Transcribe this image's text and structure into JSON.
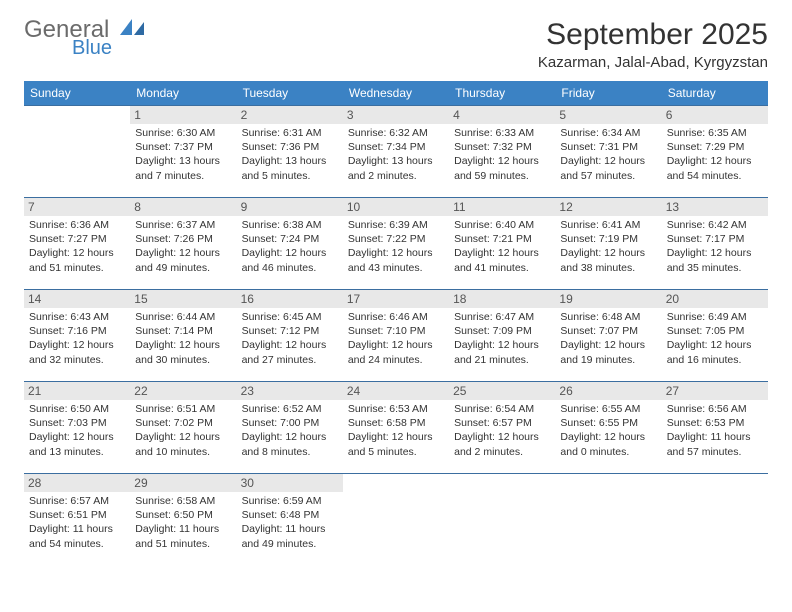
{
  "brand": {
    "line1": "General",
    "line2": "Blue"
  },
  "title": "September 2025",
  "subtitle": "Kazarman, Jalal-Abad, Kyrgyzstan",
  "colors": {
    "header_bg": "#3b82c4",
    "header_fg": "#ffffff",
    "daynum_bg": "#e8e8e8",
    "border": "#3b6ea0",
    "brand_gray": "#6b6b6b",
    "brand_blue": "#3b82c4"
  },
  "day_headers": [
    "Sunday",
    "Monday",
    "Tuesday",
    "Wednesday",
    "Thursday",
    "Friday",
    "Saturday"
  ],
  "weeks": [
    [
      null,
      {
        "n": "1",
        "sr": "Sunrise: 6:30 AM",
        "ss": "Sunset: 7:37 PM",
        "dl": "Daylight: 13 hours and 7 minutes."
      },
      {
        "n": "2",
        "sr": "Sunrise: 6:31 AM",
        "ss": "Sunset: 7:36 PM",
        "dl": "Daylight: 13 hours and 5 minutes."
      },
      {
        "n": "3",
        "sr": "Sunrise: 6:32 AM",
        "ss": "Sunset: 7:34 PM",
        "dl": "Daylight: 13 hours and 2 minutes."
      },
      {
        "n": "4",
        "sr": "Sunrise: 6:33 AM",
        "ss": "Sunset: 7:32 PM",
        "dl": "Daylight: 12 hours and 59 minutes."
      },
      {
        "n": "5",
        "sr": "Sunrise: 6:34 AM",
        "ss": "Sunset: 7:31 PM",
        "dl": "Daylight: 12 hours and 57 minutes."
      },
      {
        "n": "6",
        "sr": "Sunrise: 6:35 AM",
        "ss": "Sunset: 7:29 PM",
        "dl": "Daylight: 12 hours and 54 minutes."
      }
    ],
    [
      {
        "n": "7",
        "sr": "Sunrise: 6:36 AM",
        "ss": "Sunset: 7:27 PM",
        "dl": "Daylight: 12 hours and 51 minutes."
      },
      {
        "n": "8",
        "sr": "Sunrise: 6:37 AM",
        "ss": "Sunset: 7:26 PM",
        "dl": "Daylight: 12 hours and 49 minutes."
      },
      {
        "n": "9",
        "sr": "Sunrise: 6:38 AM",
        "ss": "Sunset: 7:24 PM",
        "dl": "Daylight: 12 hours and 46 minutes."
      },
      {
        "n": "10",
        "sr": "Sunrise: 6:39 AM",
        "ss": "Sunset: 7:22 PM",
        "dl": "Daylight: 12 hours and 43 minutes."
      },
      {
        "n": "11",
        "sr": "Sunrise: 6:40 AM",
        "ss": "Sunset: 7:21 PM",
        "dl": "Daylight: 12 hours and 41 minutes."
      },
      {
        "n": "12",
        "sr": "Sunrise: 6:41 AM",
        "ss": "Sunset: 7:19 PM",
        "dl": "Daylight: 12 hours and 38 minutes."
      },
      {
        "n": "13",
        "sr": "Sunrise: 6:42 AM",
        "ss": "Sunset: 7:17 PM",
        "dl": "Daylight: 12 hours and 35 minutes."
      }
    ],
    [
      {
        "n": "14",
        "sr": "Sunrise: 6:43 AM",
        "ss": "Sunset: 7:16 PM",
        "dl": "Daylight: 12 hours and 32 minutes."
      },
      {
        "n": "15",
        "sr": "Sunrise: 6:44 AM",
        "ss": "Sunset: 7:14 PM",
        "dl": "Daylight: 12 hours and 30 minutes."
      },
      {
        "n": "16",
        "sr": "Sunrise: 6:45 AM",
        "ss": "Sunset: 7:12 PM",
        "dl": "Daylight: 12 hours and 27 minutes."
      },
      {
        "n": "17",
        "sr": "Sunrise: 6:46 AM",
        "ss": "Sunset: 7:10 PM",
        "dl": "Daylight: 12 hours and 24 minutes."
      },
      {
        "n": "18",
        "sr": "Sunrise: 6:47 AM",
        "ss": "Sunset: 7:09 PM",
        "dl": "Daylight: 12 hours and 21 minutes."
      },
      {
        "n": "19",
        "sr": "Sunrise: 6:48 AM",
        "ss": "Sunset: 7:07 PM",
        "dl": "Daylight: 12 hours and 19 minutes."
      },
      {
        "n": "20",
        "sr": "Sunrise: 6:49 AM",
        "ss": "Sunset: 7:05 PM",
        "dl": "Daylight: 12 hours and 16 minutes."
      }
    ],
    [
      {
        "n": "21",
        "sr": "Sunrise: 6:50 AM",
        "ss": "Sunset: 7:03 PM",
        "dl": "Daylight: 12 hours and 13 minutes."
      },
      {
        "n": "22",
        "sr": "Sunrise: 6:51 AM",
        "ss": "Sunset: 7:02 PM",
        "dl": "Daylight: 12 hours and 10 minutes."
      },
      {
        "n": "23",
        "sr": "Sunrise: 6:52 AM",
        "ss": "Sunset: 7:00 PM",
        "dl": "Daylight: 12 hours and 8 minutes."
      },
      {
        "n": "24",
        "sr": "Sunrise: 6:53 AM",
        "ss": "Sunset: 6:58 PM",
        "dl": "Daylight: 12 hours and 5 minutes."
      },
      {
        "n": "25",
        "sr": "Sunrise: 6:54 AM",
        "ss": "Sunset: 6:57 PM",
        "dl": "Daylight: 12 hours and 2 minutes."
      },
      {
        "n": "26",
        "sr": "Sunrise: 6:55 AM",
        "ss": "Sunset: 6:55 PM",
        "dl": "Daylight: 12 hours and 0 minutes."
      },
      {
        "n": "27",
        "sr": "Sunrise: 6:56 AM",
        "ss": "Sunset: 6:53 PM",
        "dl": "Daylight: 11 hours and 57 minutes."
      }
    ],
    [
      {
        "n": "28",
        "sr": "Sunrise: 6:57 AM",
        "ss": "Sunset: 6:51 PM",
        "dl": "Daylight: 11 hours and 54 minutes."
      },
      {
        "n": "29",
        "sr": "Sunrise: 6:58 AM",
        "ss": "Sunset: 6:50 PM",
        "dl": "Daylight: 11 hours and 51 minutes."
      },
      {
        "n": "30",
        "sr": "Sunrise: 6:59 AM",
        "ss": "Sunset: 6:48 PM",
        "dl": "Daylight: 11 hours and 49 minutes."
      },
      null,
      null,
      null,
      null
    ]
  ]
}
